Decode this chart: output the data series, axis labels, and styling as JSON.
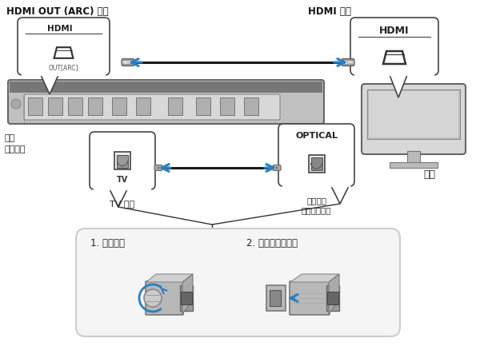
{
  "bg_color": "#ffffff",
  "fig_width": 6.0,
  "fig_height": 4.33,
  "dpi": 100,
  "labels": {
    "hdmi_out_arc": "HDMI OUT (ARC) 插孔",
    "hdmi_in": "HDMI 输入",
    "hdmi_label": "HDMI",
    "out_arc_label": "OUT[ARC]",
    "tv_plug": "TV 插孔",
    "optical_label": "OPTICAL",
    "audio_out": "音频输出\n（数字光纤）",
    "main_unit": "本机\n（后端）",
    "tv_label": "电视",
    "step1": "1. 取下盖帽",
    "step2": "2. 检查插头的方向",
    "tv_port": "TV"
  },
  "colors": {
    "arrow_blue": "#2a7fc0",
    "cable_black": "#1a1a1a",
    "connector_gray": "#888888",
    "device_gray": "#cccccc",
    "device_dark": "#555555",
    "light_gray": "#e8e8e8",
    "mid_gray": "#aaaaaa",
    "speech_bg": "#ffffff",
    "instruction_bg": "#f5f5f5",
    "text_dark": "#222222",
    "soundbar_gray": "#b8b8b8",
    "soundbar_dark": "#888888"
  }
}
